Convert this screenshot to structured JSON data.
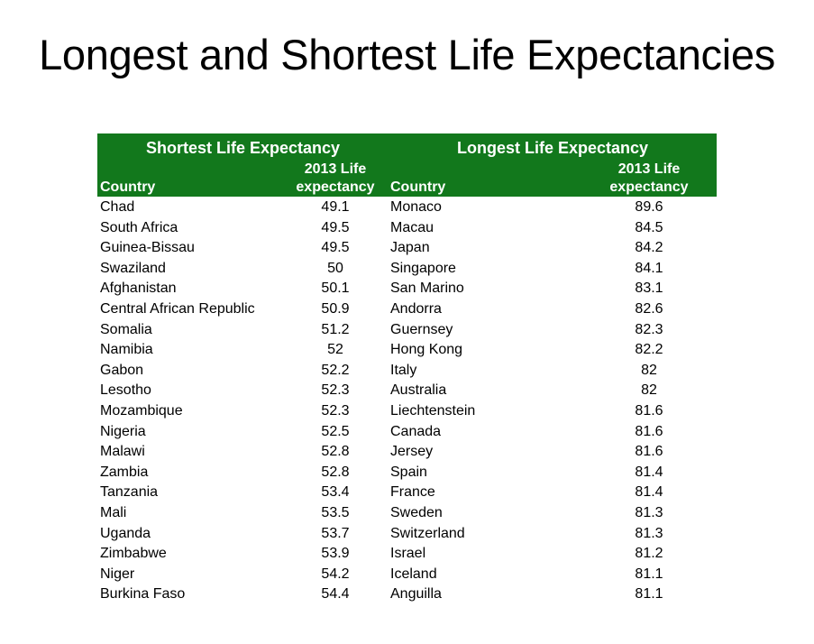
{
  "title": "Longest and Shortest Life Expectancies",
  "header_color": "#12781c",
  "table": {
    "shortest": {
      "heading": "Shortest Life Expectancy",
      "col_country": "Country",
      "col_value": "2013 Life expectancy",
      "rows": [
        {
          "country": "Chad",
          "value": "49.1"
        },
        {
          "country": "South Africa",
          "value": "49.5"
        },
        {
          "country": "Guinea-Bissau",
          "value": "49.5"
        },
        {
          "country": "Swaziland",
          "value": "50"
        },
        {
          "country": "Afghanistan",
          "value": "50.1"
        },
        {
          "country": "Central African Republic",
          "value": "50.9"
        },
        {
          "country": "Somalia",
          "value": "51.2"
        },
        {
          "country": "Namibia",
          "value": "52"
        },
        {
          "country": "Gabon",
          "value": "52.2"
        },
        {
          "country": "Lesotho",
          "value": "52.3"
        },
        {
          "country": "Mozambique",
          "value": "52.3"
        },
        {
          "country": "Nigeria",
          "value": "52.5"
        },
        {
          "country": "Malawi",
          "value": "52.8"
        },
        {
          "country": "Zambia",
          "value": "52.8"
        },
        {
          "country": "Tanzania",
          "value": "53.4"
        },
        {
          "country": "Mali",
          "value": "53.5"
        },
        {
          "country": "Uganda",
          "value": "53.7"
        },
        {
          "country": "Zimbabwe",
          "value": "53.9"
        },
        {
          "country": "Niger",
          "value": "54.2"
        },
        {
          "country": "Burkina Faso",
          "value": "54.4"
        }
      ]
    },
    "longest": {
      "heading": "Longest Life Expectancy",
      "col_country": "Country",
      "col_value": "2013 Life expectancy",
      "rows": [
        {
          "country": "Monaco",
          "value": "89.6"
        },
        {
          "country": "Macau",
          "value": "84.5"
        },
        {
          "country": "Japan",
          "value": "84.2"
        },
        {
          "country": "Singapore",
          "value": "84.1"
        },
        {
          "country": "San Marino",
          "value": "83.1"
        },
        {
          "country": "Andorra",
          "value": "82.6"
        },
        {
          "country": "Guernsey",
          "value": "82.3"
        },
        {
          "country": "Hong Kong",
          "value": "82.2"
        },
        {
          "country": "Italy",
          "value": "82"
        },
        {
          "country": "Australia",
          "value": "82"
        },
        {
          "country": "Liechtenstein",
          "value": "81.6"
        },
        {
          "country": "Canada",
          "value": "81.6"
        },
        {
          "country": "Jersey",
          "value": "81.6"
        },
        {
          "country": "Spain",
          "value": "81.4"
        },
        {
          "country": "France",
          "value": "81.4"
        },
        {
          "country": "Sweden",
          "value": "81.3"
        },
        {
          "country": "Switzerland",
          "value": "81.3"
        },
        {
          "country": "Israel",
          "value": "81.2"
        },
        {
          "country": "Iceland",
          "value": "81.1"
        },
        {
          "country": "Anguilla",
          "value": "81.1"
        }
      ]
    }
  }
}
